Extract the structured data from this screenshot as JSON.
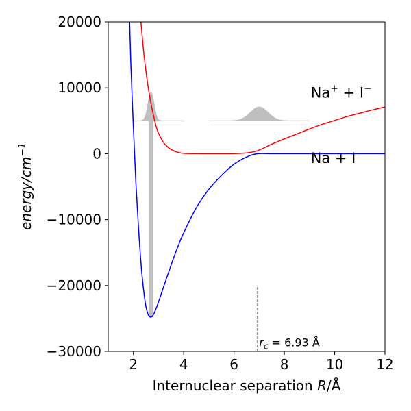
{
  "chart_data": {
    "type": "line",
    "xlabel_text": "Internuclear separation ",
    "xlabel_var": "R",
    "xlabel_unit": "/Å",
    "ylabel_text": "energy/cm",
    "ylabel_exp": "−1",
    "xlim": [
      1,
      12
    ],
    "ylim": [
      -30000,
      20000
    ],
    "xticks": [
      2,
      4,
      6,
      8,
      10,
      12
    ],
    "yticks": [
      -30000,
      -20000,
      -10000,
      0,
      10000,
      20000
    ],
    "xtick_labels": [
      "2",
      "4",
      "6",
      "8",
      "10",
      "12"
    ],
    "ytick_labels": [
      "−30000",
      "−20000",
      "−10000",
      "0",
      "10000",
      "20000"
    ],
    "grid": false,
    "series": [
      {
        "name": "Na⁺ + I⁻",
        "color": "#ff0000",
        "x": [
          2.3,
          2.4,
          2.5,
          2.6,
          2.7,
          2.8,
          2.9,
          3.0,
          3.2,
          3.4,
          3.6,
          3.8,
          4.0,
          4.5,
          5.0,
          5.5,
          6.0,
          6.5,
          6.93,
          7.5,
          8.0,
          8.5,
          9.0,
          9.5,
          10.0,
          10.5,
          11.0,
          11.5,
          12.0
        ],
        "y": [
          20000,
          15800,
          12500,
          9800,
          7600,
          5800,
          4200,
          3100,
          1700,
          900,
          450,
          180,
          60,
          10,
          0,
          0,
          20,
          120,
          450,
          1450,
          2250,
          3000,
          3750,
          4450,
          5050,
          5650,
          6150,
          6650,
          7100
        ]
      },
      {
        "name": "Na + I",
        "color": "#0000ff",
        "x": [
          1.85,
          1.9,
          2.0,
          2.1,
          2.2,
          2.3,
          2.4,
          2.5,
          2.6,
          2.7,
          2.8,
          2.9,
          3.0,
          3.2,
          3.4,
          3.6,
          3.8,
          4.0,
          4.5,
          5.0,
          5.5,
          6.0,
          6.5,
          6.93,
          7.5,
          8.0,
          9.0,
          10.0,
          11.0,
          12.0
        ],
        "y": [
          20000,
          13500,
          4000,
          -4500,
          -11000,
          -16500,
          -20500,
          -23200,
          -24500,
          -24800,
          -24400,
          -23500,
          -22500,
          -20200,
          -18000,
          -15800,
          -13800,
          -12000,
          -8200,
          -5400,
          -3300,
          -1600,
          -500,
          0,
          0,
          0,
          0,
          0,
          0,
          0
        ]
      }
    ],
    "curve_labels": [
      {
        "base": "Na",
        "sup1": "+",
        "mid": " + I",
        "sup2": "−",
        "x": 9.05,
        "y": 8500
      },
      {
        "base": "Na + I",
        "sup1": "",
        "mid": "",
        "sup2": "",
        "x": 9.05,
        "y": -1400
      }
    ],
    "annotations": [
      {
        "text_var": "r",
        "text_sub": "c",
        "text_rest": " = 6.93 Å",
        "x": 7.0,
        "y": -29200
      }
    ],
    "crossing": {
      "x": 6.93,
      "y_from": -30000,
      "y_to": -20000
    },
    "wavepackets": [
      {
        "center": 2.7,
        "width": 0.12,
        "baseline": 5000,
        "height": 4300,
        "x_from": 1.95,
        "x_to": 4.05
      },
      {
        "center": 7.0,
        "width": 0.35,
        "baseline": 5000,
        "height": 2100,
        "x_from": 5.0,
        "x_to": 9.0
      }
    ],
    "excitation_bar": {
      "x": 2.7,
      "y_from": -24800,
      "y_to": 5000
    },
    "colors": {
      "packet": "#bfbfbf",
      "crossing": "#808080",
      "axes": "#000000"
    }
  }
}
